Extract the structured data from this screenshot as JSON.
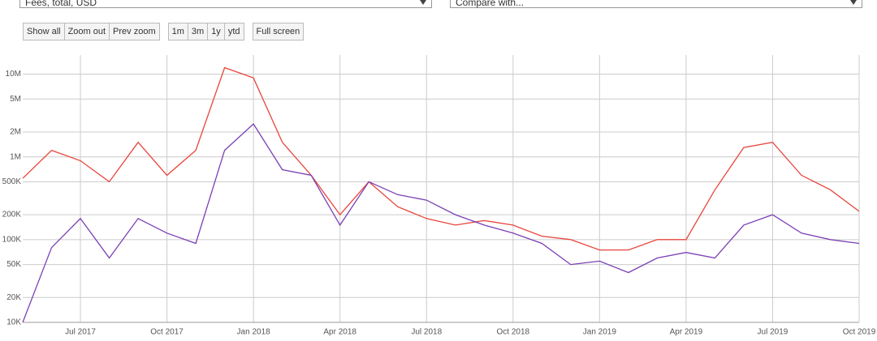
{
  "selectors": [
    "Fees, total, USD",
    "Compare with..."
  ],
  "buttons": [
    [
      "Show all",
      "Zoom out",
      "Prev zoom"
    ],
    [
      "1m",
      "3m",
      "1y",
      "ytd"
    ],
    [
      "Full screen"
    ]
  ],
  "chart_data": {
    "type": "line",
    "log_scale": true,
    "grid": true,
    "x": [
      "2017-05",
      "2017-06",
      "2017-07",
      "2017-08",
      "2017-09",
      "2017-10",
      "2017-11",
      "2017-12",
      "2018-01",
      "2018-02",
      "2018-03",
      "2018-04",
      "2018-05",
      "2018-06",
      "2018-07",
      "2018-08",
      "2018-09",
      "2018-10",
      "2018-11",
      "2018-12",
      "2019-01",
      "2019-02",
      "2019-03",
      "2019-04",
      "2019-05",
      "2019-06",
      "2019-07",
      "2019-08",
      "2019-09",
      "2019-10"
    ],
    "series": [
      {
        "color": "#e8453c",
        "values": [
          550000,
          1200000,
          900000,
          500000,
          1500000,
          600000,
          1200000,
          12000000,
          9000000,
          1500000,
          600000,
          200000,
          500000,
          250000,
          180000,
          150000,
          170000,
          150000,
          110000,
          100000,
          75000,
          75000,
          100000,
          100000,
          400000,
          1300000,
          1500000,
          600000,
          400000,
          220000
        ]
      },
      {
        "color": "#7b3fb5",
        "values": [
          10000,
          80000,
          180000,
          60000,
          180000,
          120000,
          90000,
          1200000,
          2500000,
          700000,
          600000,
          150000,
          500000,
          350000,
          300000,
          200000,
          150000,
          120000,
          90000,
          50000,
          55000,
          40000,
          60000,
          70000,
          60000,
          150000,
          200000,
          120000,
          100000,
          90000
        ]
      }
    ],
    "xlim": [
      "2017-05",
      "2019-10"
    ],
    "xticks": [
      {
        "value": "2017-07",
        "label": "Jul 2017"
      },
      {
        "value": "2017-10",
        "label": "Oct 2017"
      },
      {
        "value": "2018-01",
        "label": "Jan 2018"
      },
      {
        "value": "2018-04",
        "label": "Apr 2018"
      },
      {
        "value": "2018-07",
        "label": "Jul 2018"
      },
      {
        "value": "2018-10",
        "label": "Oct 2018"
      },
      {
        "value": "2019-01",
        "label": "Jan 2019"
      },
      {
        "value": "2019-04",
        "label": "Apr 2019"
      },
      {
        "value": "2019-07",
        "label": "Jul 2019"
      },
      {
        "value": "2019-10",
        "label": "Oct 2019"
      }
    ],
    "ylim": [
      10000,
      17000000
    ],
    "yticks": [
      {
        "value": 10000,
        "label": "10K"
      },
      {
        "value": 20000,
        "label": "20K"
      },
      {
        "value": 50000,
        "label": "50K"
      },
      {
        "value": 100000,
        "label": "100K"
      },
      {
        "value": 200000,
        "label": "200K"
      },
      {
        "value": 500000,
        "label": "500K"
      },
      {
        "value": 1000000,
        "label": "1M"
      },
      {
        "value": 2000000,
        "label": "2M"
      },
      {
        "value": 5000000,
        "label": "5M"
      },
      {
        "value": 10000000,
        "label": "10M"
      }
    ]
  }
}
